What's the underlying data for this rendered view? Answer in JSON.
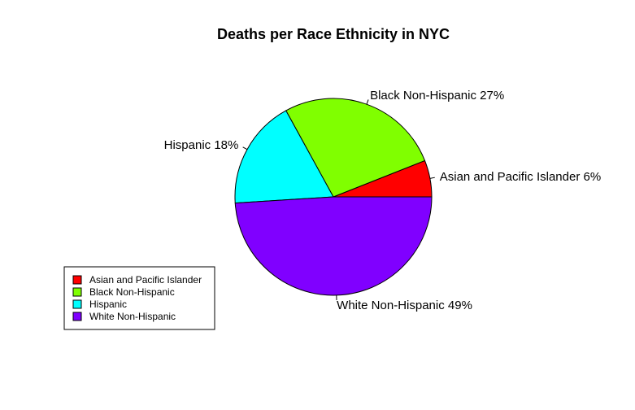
{
  "chart_data": {
    "type": "pie",
    "title": "Deaths per Race Ethnicity in NYC",
    "slices": [
      {
        "name": "Asian and Pacific Islander",
        "label": "Asian and Pacific Islander 6%",
        "percent": 6,
        "color": "#FF0000"
      },
      {
        "name": "Black Non-Hispanic",
        "label": "Black Non-Hispanic 27%",
        "percent": 27,
        "color": "#80FF00"
      },
      {
        "name": "Hispanic",
        "label": "Hispanic 18%",
        "percent": 18,
        "color": "#00FFFF"
      },
      {
        "name": "White Non-Hispanic",
        "label": "White Non-Hispanic 49%",
        "percent": 49,
        "color": "#8000FF"
      }
    ],
    "start_angle": "0 degrees (3 o'clock), counter-clockwise",
    "legend": {
      "placement": "bottom-left",
      "entries": [
        "Asian and Pacific Islander",
        "Black Non-Hispanic",
        "Hispanic",
        "White Non-Hispanic"
      ]
    }
  }
}
